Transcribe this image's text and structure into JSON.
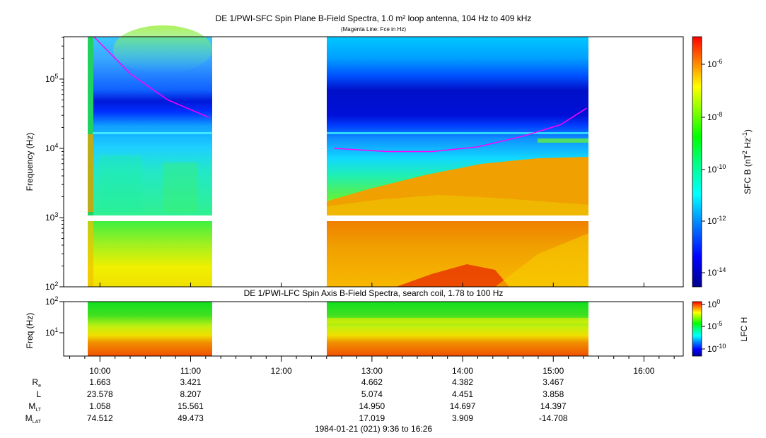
{
  "chart_data": [
    {
      "type": "heatmap",
      "title": "DE 1/PWI-SFC  Spin Plane B-Field Spectra, 1.0 m² loop antenna, 104 Hz to 409 kHz",
      "subtitle": "(Magenta Line: Fce in Hz)",
      "ylabel": "Frequency (Hz)",
      "y_scale": "log",
      "ylim": [
        100,
        409000
      ],
      "y_ticks": [
        {
          "value": 100,
          "label": "10",
          "exp": "2"
        },
        {
          "value": 1000,
          "label": "10",
          "exp": "3"
        },
        {
          "value": 10000,
          "label": "10",
          "exp": "4"
        },
        {
          "value": 100000,
          "label": "10",
          "exp": "5"
        }
      ],
      "colorbar": {
        "label": "SFC B (nT",
        "label_exp1": "2",
        "label_mid": " Hz",
        "label_exp2": "-1",
        "label_end": ")",
        "scale": "log",
        "range": [
          3e-15,
          1e-05
        ],
        "ticks": [
          {
            "label": "10",
            "exp": "-6"
          },
          {
            "label": "10",
            "exp": "-8"
          },
          {
            "label": "10",
            "exp": "-10"
          },
          {
            "label": "10",
            "exp": "-12"
          },
          {
            "label": "10",
            "exp": "-14"
          }
        ],
        "colors": [
          "#00008b",
          "#0000ff",
          "#0080ff",
          "#00ffff",
          "#00ff80",
          "#00ff00",
          "#80ff00",
          "#ffff00",
          "#ff8000",
          "#ff0000"
        ]
      },
      "data_segments": [
        {
          "start": "09:54",
          "end": "11:13"
        },
        {
          "start": "12:30",
          "end": "15:24"
        }
      ],
      "magenta_line": {
        "name": "Fce in Hz",
        "segments": [
          {
            "points": [
              [
                "09:56",
                409000
              ],
              [
                "10:20",
                120000
              ],
              [
                "10:45",
                50000
              ],
              [
                "11:12",
                28000
              ]
            ]
          },
          {
            "points": [
              [
                "12:35",
                10000
              ],
              [
                "13:10",
                9000
              ],
              [
                "13:40",
                9000
              ],
              [
                "14:10",
                10500
              ],
              [
                "14:40",
                15000
              ],
              [
                "15:05",
                22000
              ],
              [
                "15:22",
                38000
              ]
            ]
          }
        ]
      }
    },
    {
      "type": "heatmap",
      "title": "DE 1/PWI-LFC  Spin Axis B-Field Spectra, search coil, 1.78 to 100 Hz",
      "ylabel": "Freq (Hz)",
      "y_scale": "log",
      "ylim": [
        1.78,
        100
      ],
      "y_ticks": [
        {
          "value": 10,
          "label": "10",
          "exp": "1"
        },
        {
          "value": 100,
          "label": "10",
          "exp": "2"
        }
      ],
      "colorbar": {
        "label": "LFC H",
        "scale": "log",
        "range": [
          1e-12,
          1
        ],
        "ticks": [
          {
            "label": "10",
            "exp": "0"
          },
          {
            "label": "10",
            "exp": "-5"
          },
          {
            "label": "10",
            "exp": "-10"
          }
        ]
      },
      "data_segments": [
        {
          "start": "09:54",
          "end": "11:13"
        },
        {
          "start": "12:30",
          "end": "15:24"
        }
      ]
    }
  ],
  "time_axis": {
    "xlim": [
      "09:36",
      "16:26"
    ],
    "ticks": [
      "10:00",
      "11:00",
      "12:00",
      "13:00",
      "14:00",
      "15:00",
      "16:00"
    ]
  },
  "ephemeris": {
    "rows": [
      {
        "label": "R",
        "sub": "e",
        "values": [
          "1.663",
          "3.421",
          "",
          "4.662",
          "4.382",
          "3.467",
          ""
        ]
      },
      {
        "label": "L",
        "sub": "",
        "values": [
          "23.578",
          "8.207",
          "",
          "5.074",
          "4.451",
          "3.858",
          ""
        ]
      },
      {
        "label": "M",
        "sub": "LT",
        "values": [
          "1.058",
          "15.561",
          "",
          "14.950",
          "14.697",
          "14.397",
          ""
        ]
      },
      {
        "label": "M",
        "sub": "LAT",
        "values": [
          "74.512",
          "49.473",
          "",
          "17.019",
          "3.909",
          "-14.708",
          ""
        ]
      }
    ]
  },
  "footer": "1984-01-21 (021) 9:36 to 16:26"
}
